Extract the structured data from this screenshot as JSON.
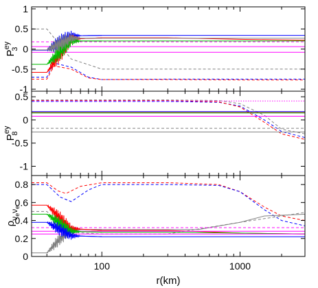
{
  "chart_data": [
    {
      "type": "line",
      "ylabel": {
        "base": "P",
        "sub": "3",
        "sup": "ey"
      },
      "ylim": [
        -1.05,
        1.05
      ],
      "yticks": [
        -1,
        -0.5,
        0,
        0.5,
        1
      ],
      "ytick_labels": [
        "-1",
        "-0.5",
        "0",
        "0.5",
        "1"
      ],
      "series": [
        {
          "color": "#0000ff",
          "dash": "none",
          "x": [
            31,
            40,
            60,
            100,
            300,
            1000,
            2950
          ],
          "y": [
            -0.03,
            -0.03,
            0.33,
            0.34,
            0.34,
            0.34,
            0.34
          ]
        },
        {
          "color": "#0000ff",
          "dash": "dashed",
          "x": [
            31,
            40,
            45,
            60,
            80,
            100,
            300,
            1000,
            2950
          ],
          "y": [
            -0.7,
            -0.7,
            -0.35,
            -0.45,
            -0.7,
            -0.76,
            -0.75,
            -0.75,
            -0.75
          ]
        },
        {
          "color": "#ff0000",
          "dash": "none",
          "x": [
            31,
            40,
            60,
            100,
            300,
            1000,
            2950
          ],
          "y": [
            -0.58,
            -0.58,
            0.25,
            0.28,
            0.28,
            0.24,
            0.22
          ]
        },
        {
          "color": "#ff0000",
          "dash": "dashed",
          "x": [
            31,
            40,
            45,
            60,
            80,
            100,
            300,
            1000,
            2950
          ],
          "y": [
            -0.75,
            -0.75,
            -0.42,
            -0.5,
            -0.72,
            -0.76,
            -0.76,
            -0.77,
            -0.77
          ]
        },
        {
          "color": "#00bb00",
          "dash": "none",
          "x": [
            31,
            40,
            60,
            100,
            300,
            1000,
            2950
          ],
          "y": [
            -0.38,
            -0.38,
            0.2,
            0.2,
            0.2,
            0.2,
            0.2
          ]
        },
        {
          "color": "#808080",
          "dash": "dashed",
          "x": [
            31,
            40,
            60,
            100,
            300,
            1000,
            2950
          ],
          "y": [
            0.5,
            0.5,
            -0.25,
            -0.5,
            -0.5,
            -0.5,
            -0.5
          ]
        },
        {
          "color": "#808080",
          "dash": "none",
          "x": [
            31,
            40,
            60,
            100,
            300,
            1000,
            2950
          ],
          "y": [
            -0.02,
            -0.02,
            0.27,
            0.27,
            0.27,
            0.27,
            0.27
          ]
        },
        {
          "color": "#ff00ff",
          "dash": "dashed",
          "x": [
            31,
            2950
          ],
          "y": [
            0.18,
            0.18
          ]
        },
        {
          "color": "#ff00ff",
          "dash": "none",
          "x": [
            31,
            2950
          ],
          "y": [
            0.06,
            0.06
          ]
        },
        {
          "color": "#ff00ff",
          "dash": "none",
          "x": [
            31,
            2950
          ],
          "y": [
            -0.08,
            -0.08
          ]
        }
      ]
    },
    {
      "type": "line",
      "ylabel": {
        "base": "P",
        "sub": "8",
        "sup": "ey"
      },
      "ylim": [
        -1.2,
        0.62
      ],
      "yticks": [
        -1,
        -0.5,
        0,
        0.5
      ],
      "ytick_labels": [
        "-1",
        "-0.5",
        "0",
        "0.5"
      ],
      "series": [
        {
          "color": "#0000ff",
          "dash": "dashed",
          "x": [
            31,
            300,
            700,
            1000,
            1500,
            2000,
            2950
          ],
          "y": [
            0.4,
            0.4,
            0.38,
            0.3,
            0.0,
            -0.25,
            -0.38
          ]
        },
        {
          "color": "#ff0000",
          "dash": "dashed",
          "x": [
            31,
            300,
            700,
            1000,
            1500,
            2000,
            2950
          ],
          "y": [
            0.42,
            0.42,
            0.39,
            0.28,
            -0.05,
            -0.3,
            -0.42
          ]
        },
        {
          "color": "#808080",
          "dash": "dashed",
          "x": [
            31,
            300,
            700,
            1000,
            1500,
            2000,
            2950
          ],
          "y": [
            0.43,
            0.43,
            0.42,
            0.35,
            0.1,
            -0.2,
            -0.3
          ]
        },
        {
          "color": "#ff00ff",
          "dash": "dotted",
          "x": [
            31,
            2950
          ],
          "y": [
            0.41,
            0.41
          ]
        },
        {
          "color": "#0000ff",
          "dash": "none",
          "x": [
            31,
            2950
          ],
          "y": [
            0.18,
            0.18
          ]
        },
        {
          "color": "#ff0000",
          "dash": "none",
          "x": [
            31,
            2950
          ],
          "y": [
            0.16,
            0.16
          ]
        },
        {
          "color": "#00bb00",
          "dash": "none",
          "x": [
            31,
            2950
          ],
          "y": [
            0.15,
            0.15
          ]
        },
        {
          "color": "#ff00ff",
          "dash": "none",
          "x": [
            31,
            2950
          ],
          "y": [
            0.08,
            0.08
          ]
        },
        {
          "color": "#808080",
          "dash": "none",
          "x": [
            31,
            2950
          ],
          "y": [
            -0.26,
            -0.26
          ]
        },
        {
          "color": "#808080",
          "dash": "dashed",
          "x": [
            31,
            2950
          ],
          "y": [
            -0.18,
            -0.18
          ]
        }
      ]
    },
    {
      "type": "line",
      "ylabel": {
        "base": "ρ",
        "sub": "ν",
        "subsub": "e",
        "sub2": "ν",
        "sub2sub": "e"
      },
      "xlabel": "r(km)",
      "ylim": [
        0,
        0.9
      ],
      "yticks": [
        0,
        0.2,
        0.4,
        0.6,
        0.8
      ],
      "ytick_labels": [
        "0",
        "0.2",
        "0.4",
        "0.6",
        "0.8"
      ],
      "xscale": "log",
      "xlim": [
        31,
        2950
      ],
      "xticks": [
        100,
        1000
      ],
      "xtick_labels": [
        "100",
        "1000"
      ],
      "series": [
        {
          "color": "#ff0000",
          "dash": "dashed",
          "x": [
            31,
            40,
            48,
            55,
            70,
            100,
            300,
            700,
            1000,
            1500,
            2000,
            2950
          ],
          "y": [
            0.82,
            0.82,
            0.73,
            0.7,
            0.78,
            0.82,
            0.82,
            0.8,
            0.72,
            0.55,
            0.45,
            0.4
          ]
        },
        {
          "color": "#0000ff",
          "dash": "dashed",
          "x": [
            31,
            40,
            50,
            60,
            80,
            100,
            300,
            700,
            1000,
            1500,
            2000,
            2950
          ],
          "y": [
            0.8,
            0.8,
            0.66,
            0.61,
            0.74,
            0.8,
            0.8,
            0.79,
            0.72,
            0.52,
            0.4,
            0.34
          ]
        },
        {
          "color": "#808080",
          "dash": "dashed",
          "x": [
            31,
            40,
            50,
            60,
            100,
            300,
            1000,
            2950
          ],
          "y": [
            0.5,
            0.5,
            0.35,
            0.27,
            0.25,
            0.25,
            0.38,
            0.49
          ]
        },
        {
          "color": "#808080",
          "dash": "none",
          "x": [
            31,
            40,
            50,
            60,
            100,
            200,
            500,
            1000,
            1500,
            2950
          ],
          "y": [
            0.04,
            0.04,
            0.2,
            0.3,
            0.3,
            0.3,
            0.3,
            0.38,
            0.45,
            0.47
          ]
        },
        {
          "color": "#ff0000",
          "dash": "none",
          "x": [
            31,
            40,
            60,
            100,
            300,
            1000,
            2950
          ],
          "y": [
            0.57,
            0.57,
            0.31,
            0.29,
            0.29,
            0.26,
            0.25
          ]
        },
        {
          "color": "#00bb00",
          "dash": "none",
          "x": [
            31,
            40,
            60,
            100,
            300,
            1000,
            2950
          ],
          "y": [
            0.47,
            0.47,
            0.28,
            0.27,
            0.27,
            0.26,
            0.25
          ]
        },
        {
          "color": "#0000ff",
          "dash": "none",
          "x": [
            31,
            40,
            60,
            100,
            300,
            1000,
            2950
          ],
          "y": [
            0.38,
            0.38,
            0.23,
            0.22,
            0.22,
            0.22,
            0.22
          ]
        },
        {
          "color": "#ff00ff",
          "dash": "dashed",
          "x": [
            31,
            2950
          ],
          "y": [
            0.32,
            0.32
          ]
        },
        {
          "color": "#ff00ff",
          "dash": "none",
          "x": [
            31,
            2950
          ],
          "y": [
            0.28,
            0.28
          ]
        },
        {
          "color": "#ff00ff",
          "dash": "none",
          "x": [
            31,
            2950
          ],
          "y": [
            0.25,
            0.25
          ]
        }
      ]
    }
  ]
}
